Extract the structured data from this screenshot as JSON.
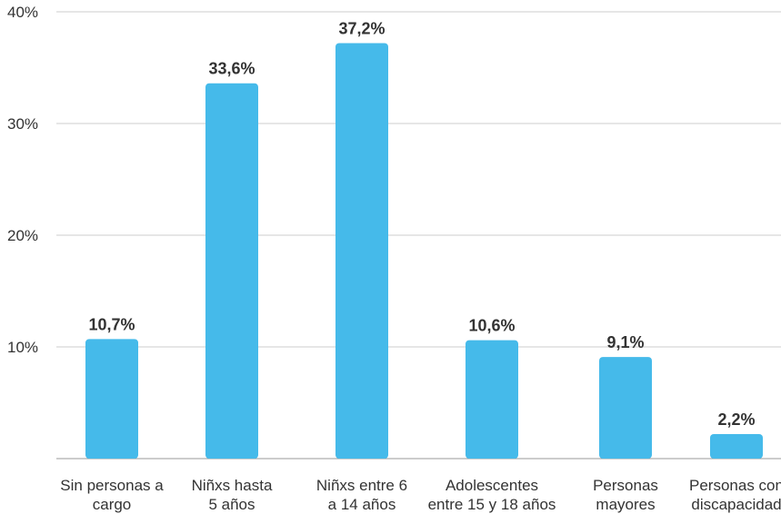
{
  "chart_data": {
    "type": "bar",
    "categories": [
      [
        "Sin personas a",
        "cargo"
      ],
      [
        "Niñxs hasta",
        "5 años"
      ],
      [
        "Niñxs entre 6",
        "a 14 años"
      ],
      [
        "Adolescentes",
        "entre 15 y 18 años"
      ],
      [
        "Personas",
        "mayores"
      ],
      [
        "Personas con",
        "discapacidad"
      ]
    ],
    "values": [
      10.7,
      33.6,
      37.2,
      10.6,
      9.1,
      2.2
    ],
    "value_labels": [
      "10,7%",
      "33,6%",
      "37,2%",
      "10,6%",
      "9,1%",
      "2,2%"
    ],
    "y_ticks": [
      10,
      20,
      30,
      40
    ],
    "y_tick_labels": [
      "10%",
      "20%",
      "30%",
      "40%"
    ],
    "ylim": [
      0,
      40
    ],
    "grid": true,
    "bar_color": "#45baea",
    "grid_color": "#cccccc",
    "title": "",
    "xlabel": "",
    "ylabel": ""
  }
}
